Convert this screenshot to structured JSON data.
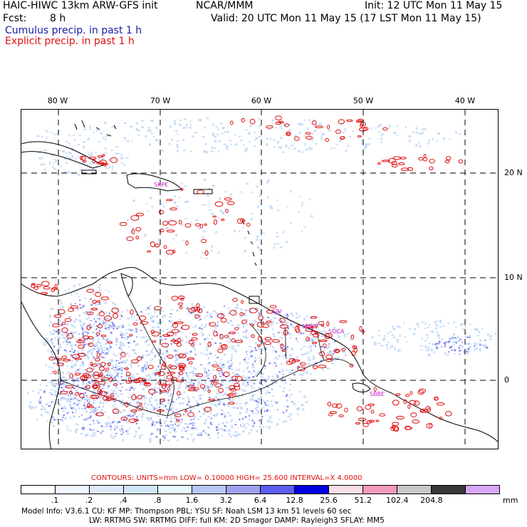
{
  "header": {
    "title": "HAIC-HIWC 13km ARW-GFS init",
    "org": "NCAR/MMM",
    "init": "Init: 12 UTC Mon 11 May 15",
    "fcst_label": "Fcst:",
    "fcst_value": "8 h",
    "valid": "Valid: 20 UTC Mon 11 May 15 (17 LST Mon 11 May 15)",
    "cumulus": "Cumulus precip. in past 1 h",
    "explicit": "Explicit precip. in past 1 h"
  },
  "map": {
    "lon_labels": [
      "80 W",
      "70 W",
      "60 W",
      "50 W",
      "40 W"
    ],
    "lat_labels": [
      "20 N",
      "10 N",
      "0"
    ],
    "station_labels": [
      "SJU",
      "SKPE",
      "SMJP",
      "SOCA",
      "SBBE"
    ],
    "colors": {
      "cumulus": "#1a1aa8",
      "explicit": "#e01010",
      "light_precip": "#c8def8",
      "medium_precip": "#7f7ff0"
    }
  },
  "contours": {
    "text": "CONTOURS:  UNITS=mm  LOW=  0.10000     HIGH=  25.600     INTERVAL=X  4.0000"
  },
  "colorbar": {
    "colors": [
      "#ffffff",
      "#f0f6ff",
      "#deebfb",
      "#cfe6f7",
      "#e6fafd",
      "#b8c8f6",
      "#a0a0f0",
      "#5c5cf0",
      "#0000e0",
      "#f8dce6",
      "#f49abd",
      "#c8c8c8",
      "#383838",
      "#d8a6f6"
    ],
    "labels": [
      ".1",
      ".2",
      ".4",
      ".8",
      "1.6",
      "3.2",
      "6.4",
      "12.8",
      "25.6",
      "51.2",
      "102.4",
      "204.8"
    ],
    "unit": "mm"
  },
  "model_info": {
    "line1": "Model Info: V3.6.1     CU: KF       MP: Thompson     PBL: YSU        SF: Noah LSM      13 km     51 levels    60 sec",
    "line2": "LW: RRTMG    SW: RRTMG   DIFF: full    KM: 2D Smagor  DAMP: Rayleigh3   SFLAY: MM5"
  }
}
